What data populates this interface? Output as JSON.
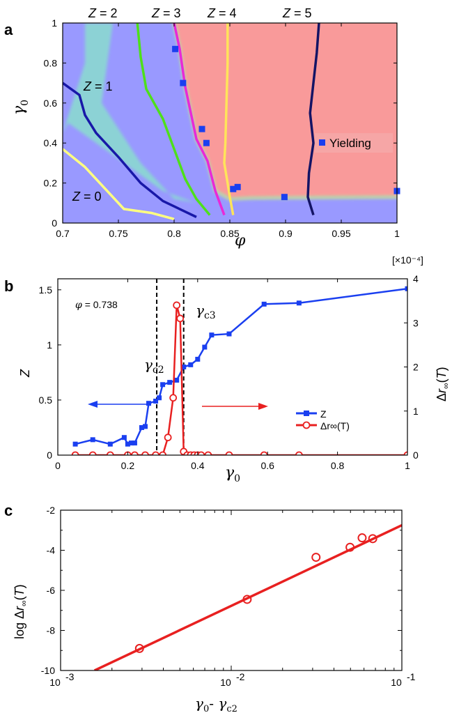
{
  "chart_data": [
    {
      "panel": "a",
      "type": "heatmap",
      "xlabel": "φ",
      "ylabel": "γ0",
      "xlim": [
        0.7,
        1.0
      ],
      "ylim": [
        0,
        1
      ],
      "xticks": [
        "0.7",
        "0.75",
        "0.8",
        "0.85",
        "0.9",
        "0.95",
        "1"
      ],
      "yticks": [
        "0",
        "0.2",
        "0.4",
        "0.6",
        "0.8",
        "1"
      ],
      "region_colors": {
        "non_yielding": "#9999ff",
        "yielding": "#f99a9a"
      },
      "annotations": [
        {
          "text": "Z = 0",
          "x": 0.705,
          "y": 0.12
        },
        {
          "text": "Z = 1",
          "x": 0.715,
          "y": 0.65
        }
      ],
      "series": [
        {
          "name": "Z = 0",
          "color": "#ffff80",
          "x": [
            0.7,
            0.72,
            0.74,
            0.755,
            0.78,
            0.8
          ],
          "y": [
            0.37,
            0.28,
            0.16,
            0.07,
            0.05,
            0.02
          ]
        },
        {
          "name": "Z = 1",
          "color": "#1818a8",
          "x": [
            0.7,
            0.715,
            0.72,
            0.73,
            0.75,
            0.77,
            0.79,
            0.805,
            0.82
          ],
          "y": [
            0.7,
            0.64,
            0.54,
            0.45,
            0.33,
            0.2,
            0.11,
            0.07,
            0.03
          ]
        },
        {
          "name": "Z = 2",
          "color": "#4ee01a",
          "x": [
            0.767,
            0.77,
            0.775,
            0.79,
            0.8,
            0.81,
            0.82,
            0.832
          ],
          "y": [
            1.0,
            0.83,
            0.67,
            0.52,
            0.37,
            0.22,
            0.12,
            0.04
          ]
        },
        {
          "name": "Z = 3",
          "color": "#e829d8",
          "x": [
            0.8,
            0.805,
            0.81,
            0.815,
            0.82,
            0.83,
            0.837,
            0.845
          ],
          "y": [
            1.0,
            0.87,
            0.68,
            0.55,
            0.42,
            0.31,
            0.16,
            0.04
          ]
        },
        {
          "name": "Z = 4",
          "color": "#ffe45a",
          "x": [
            0.848,
            0.848,
            0.847,
            0.846,
            0.845,
            0.848,
            0.85,
            0.853
          ],
          "y": [
            1.0,
            0.8,
            0.6,
            0.4,
            0.3,
            0.2,
            0.13,
            0.04
          ]
        },
        {
          "name": "Z = 5",
          "color": "#141465",
          "x": [
            0.93,
            0.928,
            0.925,
            0.922,
            0.925,
            0.921,
            0.92,
            0.925
          ],
          "y": [
            1.0,
            0.85,
            0.7,
            0.55,
            0.4,
            0.25,
            0.13,
            0.04
          ]
        },
        {
          "name": "Yielding",
          "color": "#1a3ff0",
          "marker": "square",
          "x": [
            0.801,
            0.808,
            0.825,
            0.829,
            0.853,
            0.857,
            0.899,
            1.0
          ],
          "y": [
            0.87,
            0.7,
            0.47,
            0.4,
            0.17,
            0.18,
            0.13,
            0.16
          ]
        }
      ]
    },
    {
      "panel": "b",
      "type": "line",
      "xlabel": "γ0",
      "ylabel": "Z",
      "ylabel_right": "Δr∞(T)",
      "exponent_label": "[×10⁻⁴]",
      "xlim": [
        0,
        1
      ],
      "ylim": [
        0,
        1.6
      ],
      "ylim_right": [
        0,
        4
      ],
      "xticks": [
        "0",
        "0.2",
        "0.4",
        "0.6",
        "0.8",
        "1"
      ],
      "yticks": [
        "0",
        "0.5",
        "1",
        "1.5"
      ],
      "yticks_right": [
        "0",
        "1",
        "2",
        "3",
        "4"
      ],
      "annotations": [
        {
          "text": "φ = 0.738"
        },
        {
          "text": "γc2",
          "x": 0.283
        },
        {
          "text": "γc3",
          "x": 0.36
        }
      ],
      "vlines": [
        0.283,
        0.36
      ],
      "series": [
        {
          "name": "Z",
          "axis": "left",
          "color": "#1a3ff0",
          "marker": "square",
          "x": [
            0.05,
            0.1,
            0.15,
            0.19,
            0.2,
            0.21,
            0.22,
            0.24,
            0.25,
            0.26,
            0.28,
            0.29,
            0.3,
            0.32,
            0.34,
            0.36,
            0.38,
            0.4,
            0.42,
            0.44,
            0.49,
            0.59,
            0.69,
            1.0
          ],
          "y": [
            0.1,
            0.14,
            0.1,
            0.16,
            0.1,
            0.11,
            0.11,
            0.25,
            0.26,
            0.47,
            0.49,
            0.52,
            0.64,
            0.66,
            0.68,
            0.8,
            0.82,
            0.87,
            0.98,
            1.09,
            1.1,
            1.37,
            1.38,
            1.51
          ]
        },
        {
          "name": "Δr∞(T)",
          "axis": "right",
          "color": "#e82020",
          "marker": "circle",
          "x": [
            0.05,
            0.1,
            0.15,
            0.2,
            0.22,
            0.25,
            0.28,
            0.3,
            0.315,
            0.33,
            0.34,
            0.35,
            0.36,
            0.37,
            0.38,
            0.39,
            0.4,
            0.41,
            0.43,
            0.49,
            0.59,
            0.69,
            1.0
          ],
          "y": [
            0,
            0,
            0,
            0,
            0,
            0,
            0,
            0,
            0.4,
            1.3,
            3.4,
            3.1,
            0.08,
            0,
            0,
            0,
            0,
            0,
            0,
            0,
            0,
            0,
            0
          ]
        }
      ]
    },
    {
      "panel": "c",
      "type": "scatter",
      "xlabel": "γ0- γc2",
      "ylabel": "log Δr∞(T)",
      "xscale": "log",
      "xlim": [
        0.001,
        0.1
      ],
      "ylim": [
        -10,
        -2
      ],
      "xticks": [
        {
          "base": "10",
          "exp": "-3"
        },
        {
          "base": "10",
          "exp": "-2"
        },
        {
          "base": "10",
          "exp": "-1"
        }
      ],
      "yticks": [
        "-10",
        "-8",
        "-6",
        "-4",
        "-2"
      ],
      "series": [
        {
          "name": "data",
          "color": "#e82020",
          "marker": "circle",
          "x": [
            0.0029,
            0.0124,
            0.0314,
            0.0497,
            0.0585,
            0.0675
          ],
          "y": [
            -8.9,
            -6.45,
            -4.35,
            -3.85,
            -3.38,
            -3.42
          ]
        },
        {
          "name": "fit",
          "color": "#e82020",
          "line": true,
          "x": [
            0.00158,
            0.1
          ],
          "y": [
            -10,
            -2.75
          ]
        }
      ]
    }
  ]
}
